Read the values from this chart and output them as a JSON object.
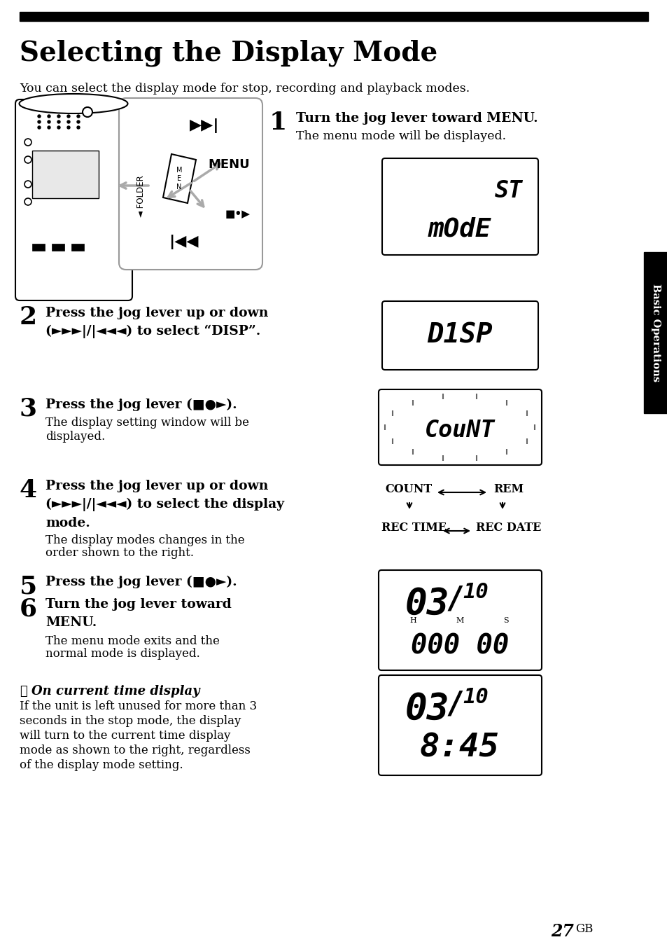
{
  "title": "Selecting the Display Mode",
  "subtitle": "You can select the display mode for stop, recording and playback modes.",
  "step1_num": "1",
  "step1_bold": "Turn the jog lever toward MENU.",
  "step1_sub": "The menu mode will be displayed.",
  "step2_num": "2",
  "step2_bold1": "Press the jog lever up or down",
  "step2_bold2": "(►►►|/|◄◄◄) to select “DISP”.",
  "step3_num": "3",
  "step3_bold": "Press the jog lever (■●►).",
  "step3_sub1": "The display setting window will be",
  "step3_sub2": "displayed.",
  "step4_num": "4",
  "step4_bold1": "Press the jog lever up or down",
  "step4_bold2": "(►►►|/|◄◄◄) to select the display",
  "step4_bold3": "mode.",
  "step4_sub1": "The display modes changes in the",
  "step4_sub2": "order shown to the right.",
  "step5_num": "5",
  "step5_bold": "Press the jog lever (■●►).",
  "step6_num": "6",
  "step6_bold1": "Turn the jog lever toward",
  "step6_bold2": "MENU.",
  "step6_sub1": "The menu mode exits and the",
  "step6_sub2": "normal mode is displayed.",
  "note_marker": "☞",
  "note_italic": "On current time display",
  "note1": "If the unit is left unused for more than 3",
  "note2": "seconds in the stop mode, the display",
  "note3": "will turn to the current time display",
  "note4": "mode as shown to the right, regardless",
  "note5": "of the display mode setting.",
  "page_num": "27",
  "page_suffix": "GB",
  "sidebar": "Basic Operations",
  "bg": "#ffffff",
  "black": "#000000",
  "gray": "#888888",
  "lightgray": "#cccccc"
}
